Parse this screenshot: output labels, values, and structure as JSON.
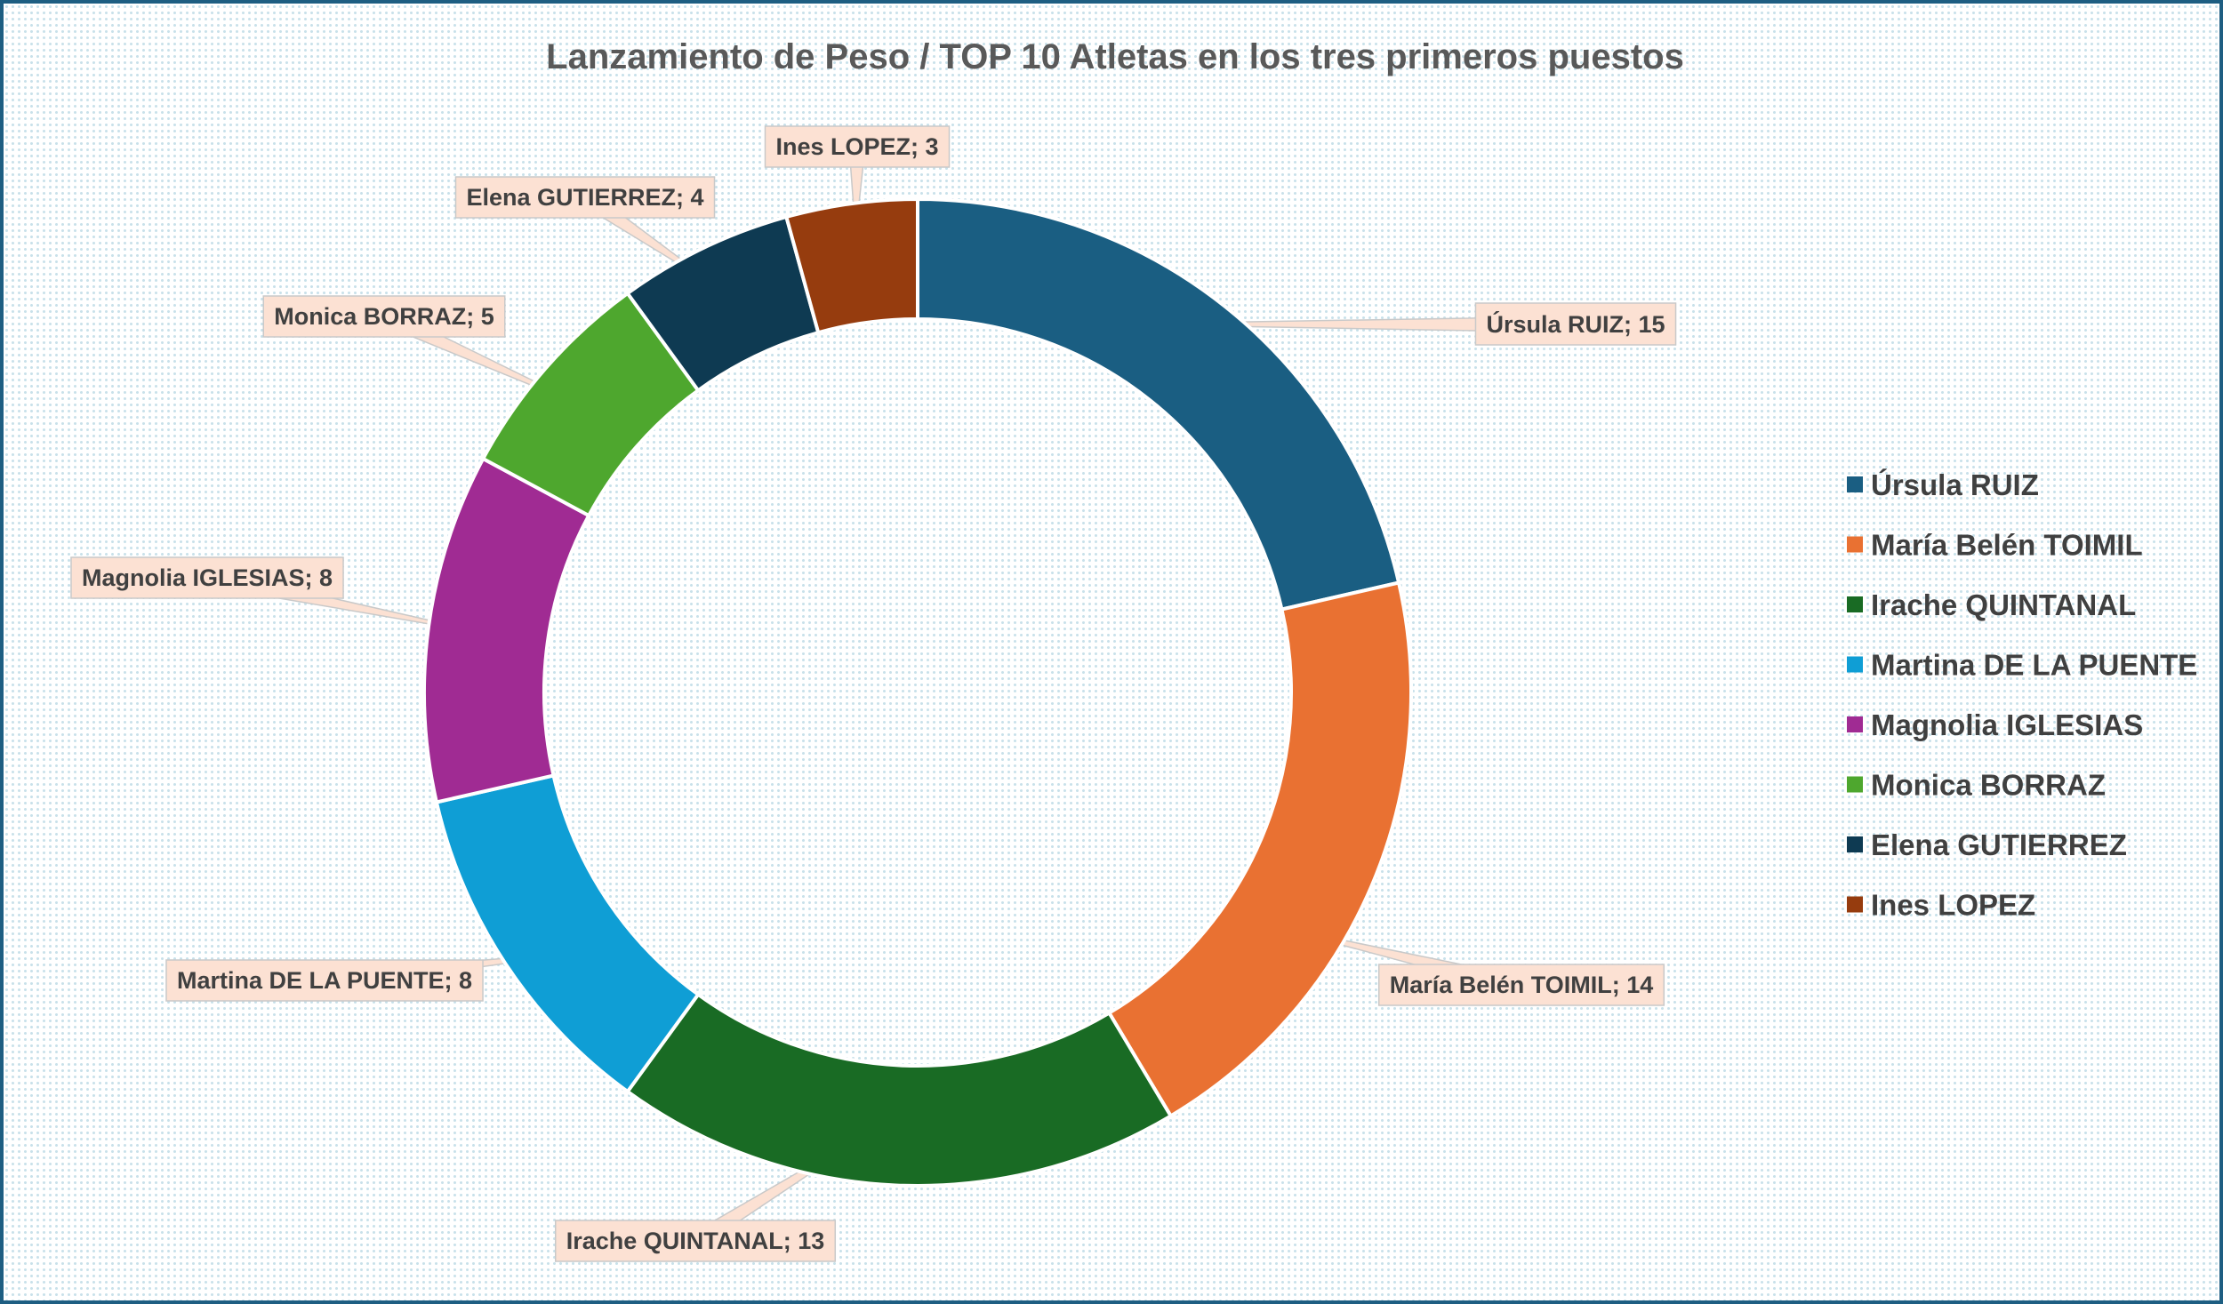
{
  "chart_data": {
    "type": "pie",
    "variant": "donut",
    "title": "Lanzamiento de Peso / TOP 10 Atletas en los tres primeros puestos",
    "categories": [
      "Úrsula RUIZ",
      "María Belén TOIMIL",
      "Irache QUINTANAL",
      "Martina DE LA PUENTE",
      "Magnolia IGLESIAS",
      "Monica BORRAZ",
      "Elena GUTIERREZ",
      "Ines LOPEZ"
    ],
    "values": [
      15,
      14,
      13,
      8,
      8,
      5,
      4,
      3
    ],
    "colors": [
      "#1a5e82",
      "#e97132",
      "#196b24",
      "#0f9ed5",
      "#a02b93",
      "#4ea72e",
      "#0e3a52",
      "#963c0e"
    ],
    "data_labels": [
      "Úrsula RUIZ; 15",
      "María Belén TOIMIL; 14",
      "Irache QUINTANAL; 13",
      "Martina DE LA PUENTE; 8",
      "Magnolia IGLESIAS; 8",
      "Monica BORRAZ; 5",
      "Elena GUTIERREZ; 4",
      "Ines LOPEZ; 3"
    ],
    "legend_position": "right"
  }
}
